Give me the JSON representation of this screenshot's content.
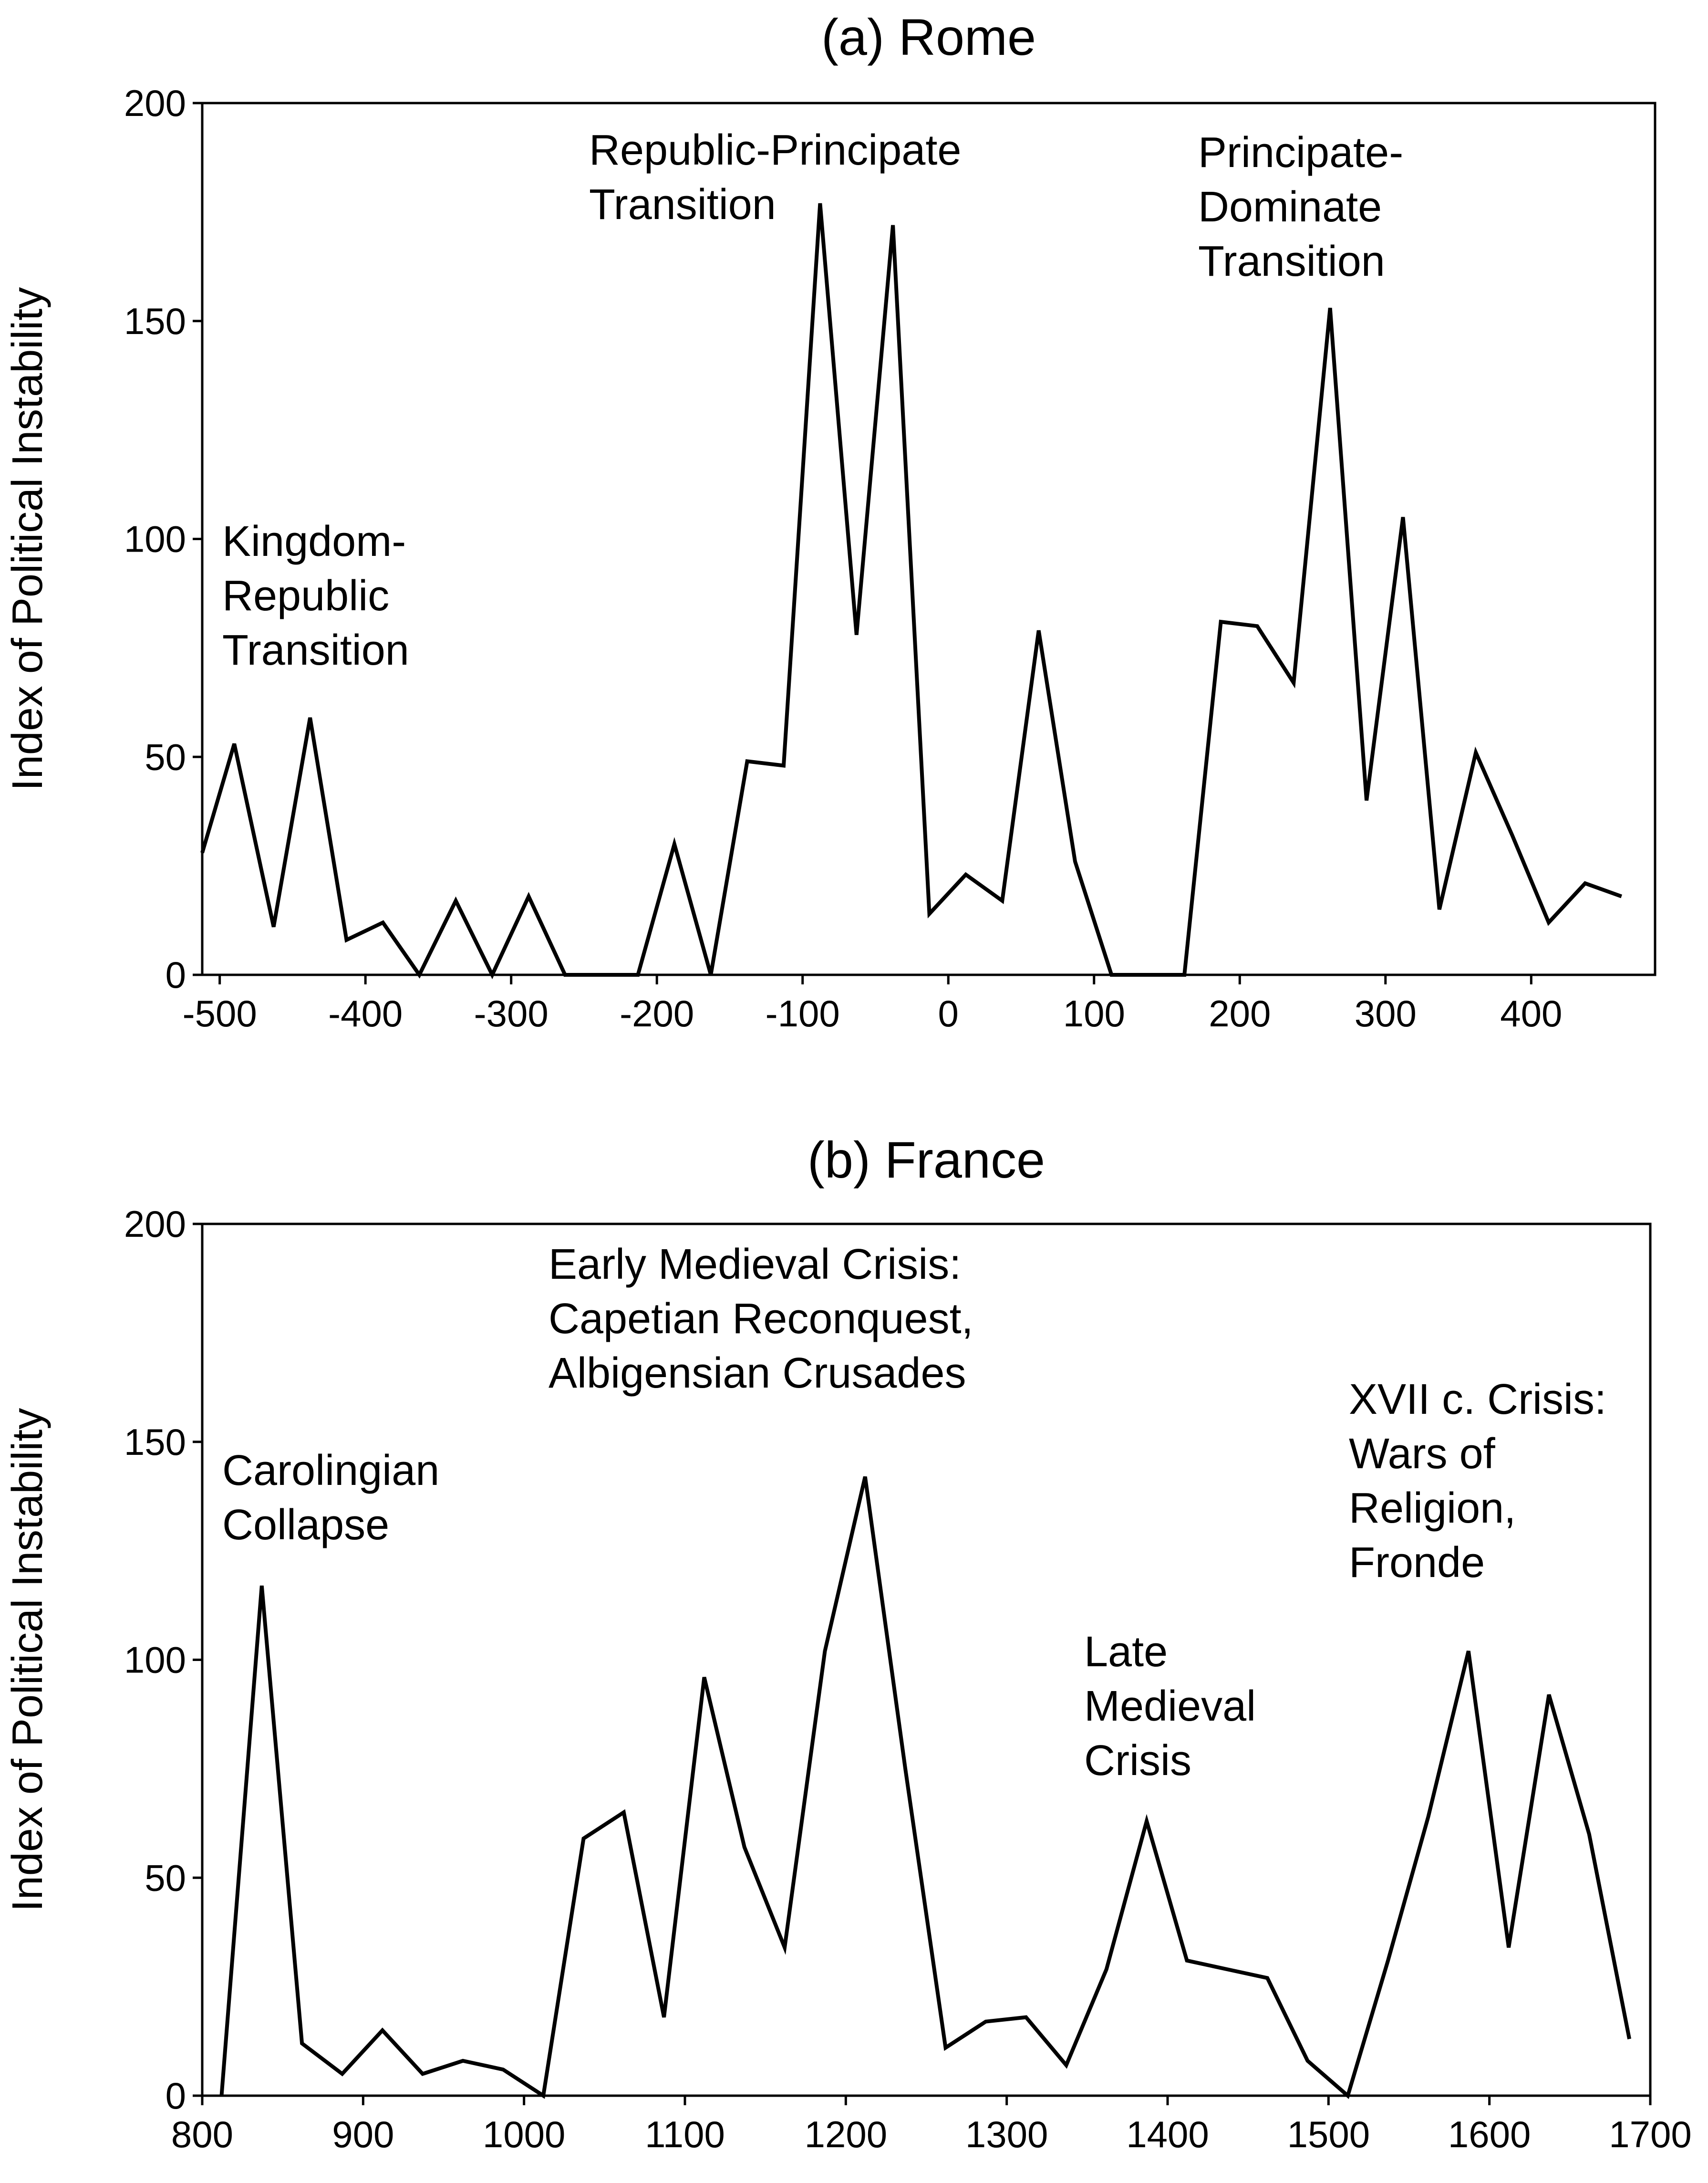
{
  "chart_data": [
    {
      "type": "line",
      "title": "(a) Rome",
      "xlabel": "",
      "ylabel": "Index of Political Instability",
      "xlim": [
        -512,
        485
      ],
      "ylim": [
        0,
        200
      ],
      "xticks": [
        -500,
        -400,
        -300,
        -200,
        -100,
        0,
        100,
        200,
        300,
        400
      ],
      "yticks": [
        0,
        50,
        100,
        150,
        200
      ],
      "x": [
        -512,
        -490,
        -463,
        -438,
        -413,
        -388,
        -363,
        -338,
        -313,
        -288,
        -263,
        -238,
        -213,
        -188,
        -163,
        -138,
        -113,
        -88,
        -63,
        -38,
        -13,
        12,
        37,
        62,
        87,
        112,
        137,
        162,
        187,
        212,
        237,
        262,
        287,
        312,
        337,
        362,
        387,
        412,
        437,
        462
      ],
      "series": [
        {
          "values": [
            28,
            53,
            11,
            59,
            8,
            12,
            0,
            17,
            0,
            18,
            0,
            0,
            0,
            30,
            0,
            49,
            48,
            177,
            78,
            172,
            14,
            23,
            17,
            79,
            26,
            0,
            0,
            0,
            81,
            80,
            67,
            153,
            40,
            105,
            15,
            51,
            32,
            12,
            21,
            18
          ]
        }
      ],
      "annotations": [
        {
          "lines": [
            "Kingdom-",
            "Republic",
            "Transition"
          ]
        },
        {
          "lines": [
            "Republic-Principate",
            "Transition"
          ]
        },
        {
          "lines": [
            "Principate-",
            "Dominate",
            "Transition"
          ]
        }
      ]
    },
    {
      "type": "line",
      "title": "(b) France",
      "xlabel": "",
      "ylabel": "Index of Political Instability",
      "xlim": [
        800,
        1700
      ],
      "ylim": [
        0,
        200
      ],
      "xticks": [
        800,
        900,
        1000,
        1100,
        1200,
        1300,
        1400,
        1500,
        1600,
        1700
      ],
      "yticks": [
        0,
        50,
        100,
        150,
        200
      ],
      "x": [
        812,
        837,
        862,
        887,
        912,
        937,
        962,
        987,
        1012,
        1037,
        1062,
        1087,
        1112,
        1137,
        1162,
        1187,
        1212,
        1237,
        1262,
        1287,
        1312,
        1337,
        1362,
        1387,
        1412,
        1437,
        1462,
        1487,
        1512,
        1537,
        1562,
        1587,
        1612,
        1637,
        1662,
        1687
      ],
      "series": [
        {
          "values": [
            0,
            117,
            12,
            5,
            15,
            5,
            8,
            6,
            0,
            59,
            65,
            18,
            96,
            57,
            34,
            102,
            142,
            75,
            11,
            17,
            18,
            7,
            29,
            63,
            31,
            29,
            27,
            8,
            0,
            31,
            64,
            102,
            34,
            92,
            60,
            13
          ]
        }
      ],
      "annotations": [
        {
          "lines": [
            "Carolingian",
            "Collapse"
          ]
        },
        {
          "lines": [
            "Early Medieval Crisis:",
            "Capetian Reconquest,",
            "Albigensian Crusades"
          ]
        },
        {
          "lines": [
            "Late",
            "Medieval",
            "Crisis"
          ]
        },
        {
          "lines": [
            "XVII c. Crisis:",
            "Wars of",
            "Religion,",
            "Fronde"
          ]
        }
      ]
    }
  ]
}
